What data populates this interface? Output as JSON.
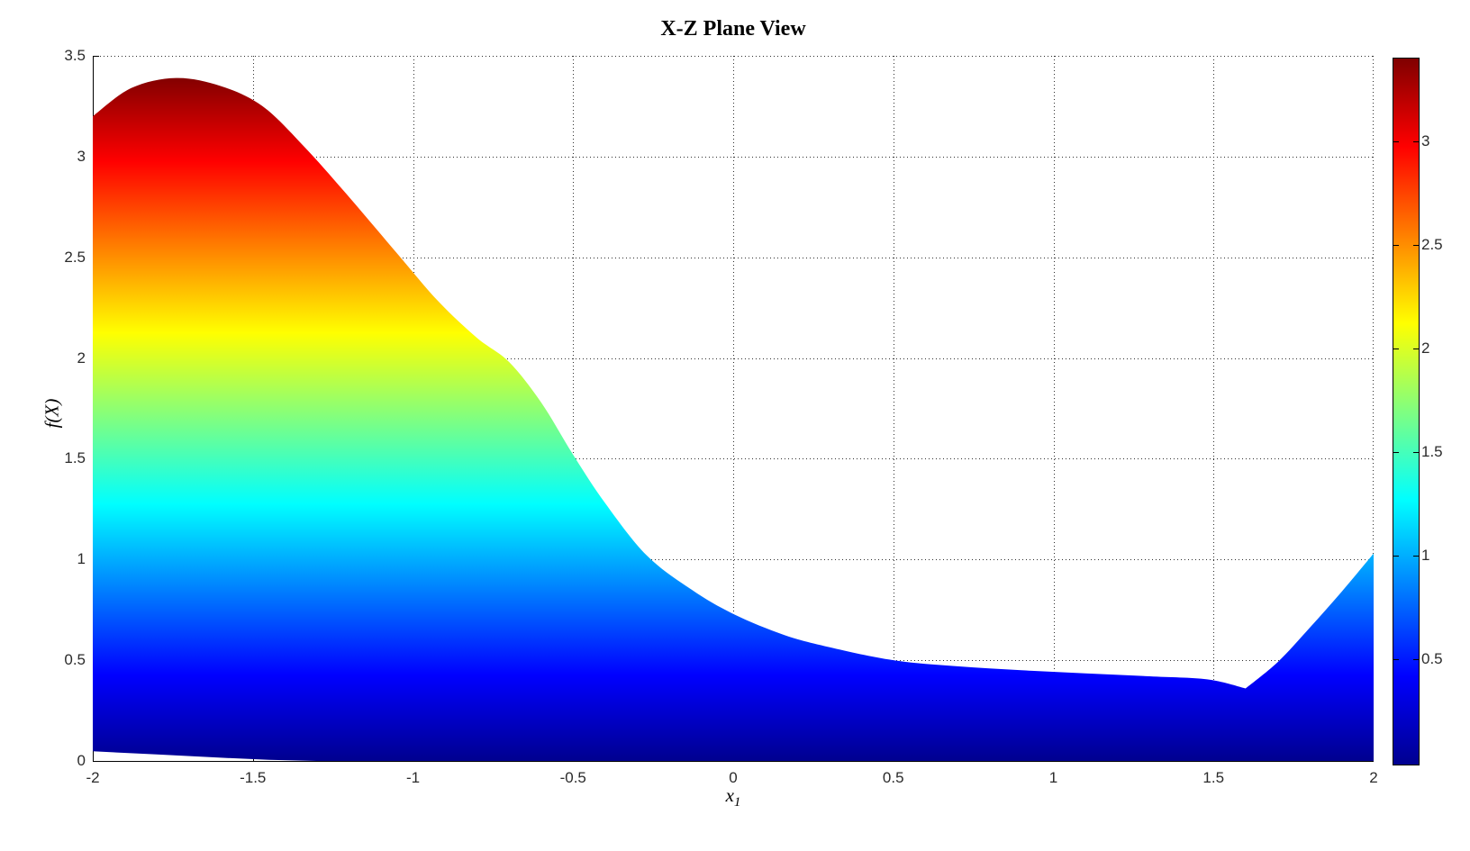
{
  "title": "X-Z Plane View",
  "axes": {
    "ylabel": "f(X)",
    "xlabel_base": "x",
    "xlabel_sub": "1",
    "xlim": [
      -2,
      2
    ],
    "ylim": [
      0,
      3.5
    ],
    "x_ticks": [
      {
        "v": -2,
        "label": "-2"
      },
      {
        "v": -1.5,
        "label": "-1.5"
      },
      {
        "v": -1,
        "label": "-1"
      },
      {
        "v": -0.5,
        "label": "-0.5"
      },
      {
        "v": 0,
        "label": "0"
      },
      {
        "v": 0.5,
        "label": "0.5"
      },
      {
        "v": 1,
        "label": "1"
      },
      {
        "v": 1.5,
        "label": "1.5"
      },
      {
        "v": 2,
        "label": "2"
      }
    ],
    "y_ticks": [
      {
        "v": 0,
        "label": "0"
      },
      {
        "v": 0.5,
        "label": "0.5"
      },
      {
        "v": 1,
        "label": "1"
      },
      {
        "v": 1.5,
        "label": "1.5"
      },
      {
        "v": 2,
        "label": "2"
      },
      {
        "v": 2.5,
        "label": "2.5"
      },
      {
        "v": 3,
        "label": "3"
      },
      {
        "v": 3.5,
        "label": "3.5"
      }
    ]
  },
  "colorbar": {
    "min": 0,
    "max": 3.4,
    "ticks": [
      {
        "v": 0.5,
        "label": "0.5"
      },
      {
        "v": 1,
        "label": "1"
      },
      {
        "v": 1.5,
        "label": "1.5"
      },
      {
        "v": 2,
        "label": "2"
      },
      {
        "v": 2.5,
        "label": "2.5"
      },
      {
        "v": 3,
        "label": "3"
      }
    ]
  },
  "chart_data": {
    "type": "area",
    "title": "X-Z Plane View",
    "xlabel": "x_1",
    "ylabel": "f(X)",
    "xlim": [
      -2,
      2
    ],
    "ylim": [
      0,
      3.5
    ],
    "grid": true,
    "legend": "none",
    "colormap": "jet",
    "color_axis": [
      0,
      3.4
    ],
    "colormap_stops": [
      {
        "value": 0,
        "color": "#00008f"
      },
      {
        "value": 0.425,
        "color": "#0000ff"
      },
      {
        "value": 1.275,
        "color": "#00ffff"
      },
      {
        "value": 1.7,
        "color": "#80ff80"
      },
      {
        "value": 2.125,
        "color": "#ffff00"
      },
      {
        "value": 2.975,
        "color": "#ff0000"
      },
      {
        "value": 3.4,
        "color": "#800000"
      }
    ],
    "upper_envelope_segments": [
      [
        [
          -2.0,
          3.2
        ],
        [
          -1.88,
          3.34
        ],
        [
          -1.74,
          3.39
        ],
        [
          -1.6,
          3.35
        ],
        [
          -1.47,
          3.25
        ],
        [
          -1.34,
          3.05
        ],
        [
          -1.2,
          2.8
        ],
        [
          -1.05,
          2.52
        ],
        [
          -0.92,
          2.28
        ],
        [
          -0.8,
          2.1
        ],
        [
          -0.7,
          1.98
        ],
        [
          -0.6,
          1.78
        ],
        [
          -0.5,
          1.52
        ],
        [
          -0.4,
          1.28
        ],
        [
          -0.27,
          1.02
        ],
        [
          -0.13,
          0.85
        ],
        [
          0.0,
          0.73
        ],
        [
          0.16,
          0.625
        ],
        [
          0.3,
          0.565
        ],
        [
          0.5,
          0.5
        ],
        [
          0.7,
          0.47
        ],
        [
          0.9,
          0.45
        ],
        [
          1.1,
          0.435
        ],
        [
          1.3,
          0.42
        ],
        [
          1.48,
          0.405
        ],
        [
          1.6,
          0.36
        ]
      ],
      [
        [
          1.6,
          0.36
        ],
        [
          1.7,
          0.49
        ],
        [
          1.8,
          0.66
        ],
        [
          1.9,
          0.84
        ],
        [
          2.0,
          1.03
        ]
      ]
    ],
    "lower_envelope": [
      [
        -2.0,
        0.048
      ],
      [
        -1.8,
        0.032
      ],
      [
        -1.6,
        0.016
      ],
      [
        -1.45,
        0.006
      ],
      [
        -1.3,
        0.0
      ],
      [
        2.0,
        0.0
      ]
    ]
  }
}
